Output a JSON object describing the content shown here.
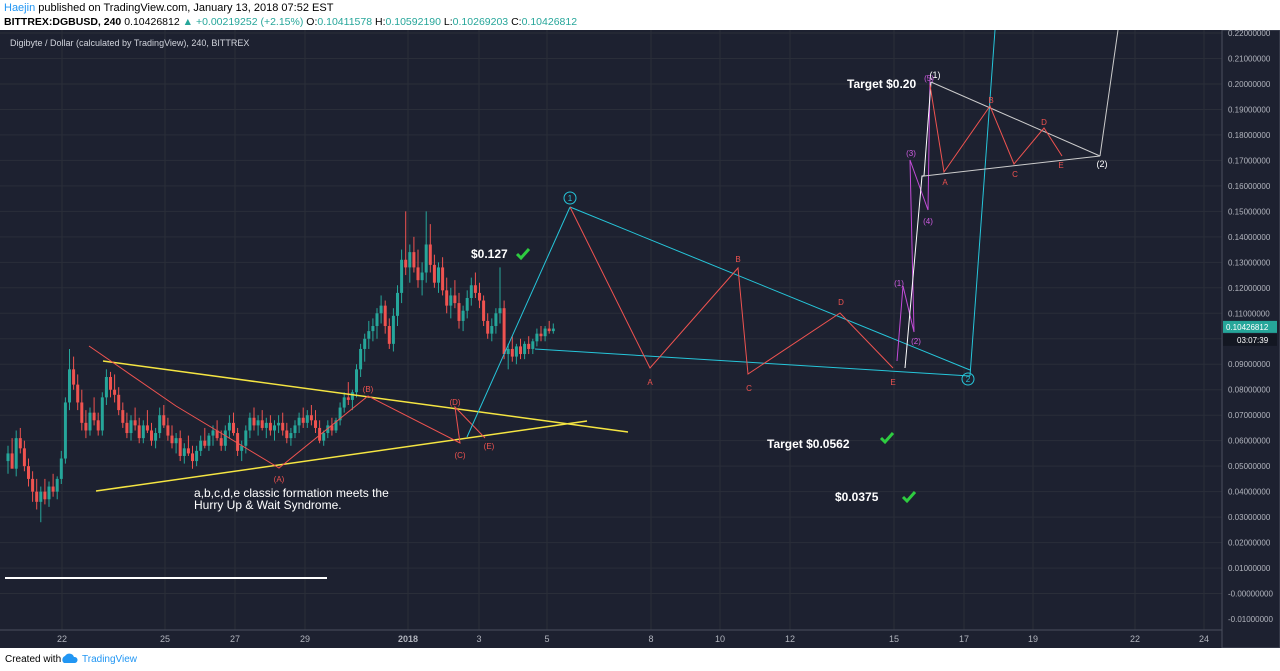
{
  "header": {
    "author": "Haejin",
    "published": "published on TradingView.com, January 13, 2018 07:52 EST",
    "symbol": "BITTREX:DGBUSD, 240",
    "last": "0.10426812",
    "change": "+0.00219252 (+2.15%)",
    "o_label": "O:",
    "o": "0.10411578",
    "h_label": "H:",
    "h": "0.10592190",
    "l_label": "L:",
    "l": "0.10269203",
    "c_label": "C:",
    "c": "0.10426812"
  },
  "footer": {
    "created": "Created with",
    "brand": "TradingView"
  },
  "chart_data": {
    "type": "candlestick",
    "title": "Digibyte / Dollar (calculated by TradingView), 240, BITTREX",
    "ylim": [
      -0.01,
      0.22
    ],
    "y_ticks": [
      "0.22000000",
      "0.21000000",
      "0.20000000",
      "0.19000000",
      "0.18000000",
      "0.17000000",
      "0.16000000",
      "0.15000000",
      "0.14000000",
      "0.13000000",
      "0.12000000",
      "0.11000000",
      "0.10000000",
      "0.09000000",
      "0.08000000",
      "0.07000000",
      "0.06000000",
      "0.05000000",
      "0.04000000",
      "0.03000000",
      "0.02000000",
      "0.01000000",
      "0.00000000",
      "-0.00000000",
      "-0.01000000"
    ],
    "x_ticks": [
      "22",
      "25",
      "27",
      "29",
      "2018",
      "3",
      "5",
      "8",
      "10",
      "12",
      "15",
      "17",
      "19",
      "22",
      "24"
    ],
    "last_price_label": "0.10426812",
    "countdown_label": "03:07:39",
    "colors": {
      "up": "#26a69a",
      "down": "#ef5350",
      "bg": "#1d2130",
      "grid": "#2a2e39",
      "axis_text": "#b2b5be"
    },
    "candles_ohlc": [
      [
        0.052,
        0.058,
        0.047,
        0.055
      ],
      [
        0.055,
        0.061,
        0.05,
        0.049
      ],
      [
        0.049,
        0.064,
        0.046,
        0.061
      ],
      [
        0.061,
        0.065,
        0.055,
        0.057
      ],
      [
        0.057,
        0.06,
        0.048,
        0.05
      ],
      [
        0.05,
        0.053,
        0.042,
        0.045
      ],
      [
        0.045,
        0.048,
        0.036,
        0.04
      ],
      [
        0.04,
        0.045,
        0.033,
        0.036
      ],
      [
        0.036,
        0.042,
        0.028,
        0.04
      ],
      [
        0.04,
        0.045,
        0.035,
        0.037
      ],
      [
        0.037,
        0.044,
        0.034,
        0.042
      ],
      [
        0.042,
        0.047,
        0.038,
        0.04
      ],
      [
        0.04,
        0.046,
        0.037,
        0.045
      ],
      [
        0.045,
        0.056,
        0.043,
        0.053
      ],
      [
        0.053,
        0.077,
        0.051,
        0.075
      ],
      [
        0.075,
        0.096,
        0.072,
        0.088
      ],
      [
        0.088,
        0.093,
        0.08,
        0.082
      ],
      [
        0.082,
        0.086,
        0.072,
        0.075
      ],
      [
        0.075,
        0.08,
        0.064,
        0.067
      ],
      [
        0.067,
        0.072,
        0.061,
        0.064
      ],
      [
        0.064,
        0.073,
        0.062,
        0.071
      ],
      [
        0.071,
        0.077,
        0.066,
        0.068
      ],
      [
        0.068,
        0.071,
        0.062,
        0.064
      ],
      [
        0.064,
        0.079,
        0.062,
        0.077
      ],
      [
        0.077,
        0.088,
        0.074,
        0.085
      ],
      [
        0.085,
        0.087,
        0.077,
        0.08
      ],
      [
        0.08,
        0.086,
        0.075,
        0.078
      ],
      [
        0.078,
        0.081,
        0.07,
        0.072
      ],
      [
        0.072,
        0.075,
        0.065,
        0.067
      ],
      [
        0.067,
        0.071,
        0.061,
        0.063
      ],
      [
        0.063,
        0.07,
        0.06,
        0.068
      ],
      [
        0.068,
        0.073,
        0.064,
        0.066
      ],
      [
        0.066,
        0.069,
        0.059,
        0.061
      ],
      [
        0.061,
        0.068,
        0.059,
        0.066
      ],
      [
        0.066,
        0.072,
        0.063,
        0.064
      ],
      [
        0.064,
        0.067,
        0.058,
        0.06
      ],
      [
        0.06,
        0.065,
        0.057,
        0.063
      ],
      [
        0.063,
        0.073,
        0.061,
        0.07
      ],
      [
        0.07,
        0.074,
        0.065,
        0.066
      ],
      [
        0.066,
        0.069,
        0.06,
        0.062
      ],
      [
        0.062,
        0.066,
        0.057,
        0.059
      ],
      [
        0.059,
        0.063,
        0.055,
        0.061
      ],
      [
        0.061,
        0.064,
        0.052,
        0.054
      ],
      [
        0.054,
        0.059,
        0.051,
        0.057
      ],
      [
        0.057,
        0.062,
        0.054,
        0.055
      ],
      [
        0.055,
        0.058,
        0.049,
        0.052
      ],
      [
        0.052,
        0.058,
        0.05,
        0.056
      ],
      [
        0.056,
        0.062,
        0.054,
        0.06
      ],
      [
        0.06,
        0.065,
        0.057,
        0.058
      ],
      [
        0.058,
        0.063,
        0.056,
        0.062
      ],
      [
        0.062,
        0.066,
        0.058,
        0.064
      ],
      [
        0.064,
        0.068,
        0.06,
        0.061
      ],
      [
        0.061,
        0.064,
        0.056,
        0.058
      ],
      [
        0.058,
        0.066,
        0.056,
        0.064
      ],
      [
        0.064,
        0.07,
        0.061,
        0.067
      ],
      [
        0.067,
        0.071,
        0.062,
        0.063
      ],
      [
        0.063,
        0.065,
        0.054,
        0.056
      ],
      [
        0.056,
        0.06,
        0.052,
        0.058
      ],
      [
        0.058,
        0.066,
        0.055,
        0.064
      ],
      [
        0.064,
        0.071,
        0.061,
        0.069
      ],
      [
        0.069,
        0.073,
        0.064,
        0.066
      ],
      [
        0.066,
        0.07,
        0.062,
        0.068
      ],
      [
        0.068,
        0.072,
        0.064,
        0.065
      ],
      [
        0.065,
        0.069,
        0.061,
        0.067
      ],
      [
        0.067,
        0.07,
        0.062,
        0.064
      ],
      [
        0.064,
        0.068,
        0.06,
        0.066
      ],
      [
        0.066,
        0.07,
        0.063,
        0.067
      ],
      [
        0.067,
        0.071,
        0.062,
        0.064
      ],
      [
        0.064,
        0.067,
        0.059,
        0.061
      ],
      [
        0.061,
        0.065,
        0.058,
        0.063
      ],
      [
        0.063,
        0.068,
        0.061,
        0.066
      ],
      [
        0.066,
        0.071,
        0.063,
        0.069
      ],
      [
        0.069,
        0.073,
        0.065,
        0.067
      ],
      [
        0.067,
        0.072,
        0.065,
        0.07
      ],
      [
        0.07,
        0.074,
        0.066,
        0.068
      ],
      [
        0.068,
        0.072,
        0.063,
        0.065
      ],
      [
        0.065,
        0.068,
        0.059,
        0.06
      ],
      [
        0.06,
        0.064,
        0.058,
        0.063
      ],
      [
        0.063,
        0.068,
        0.061,
        0.066
      ],
      [
        0.066,
        0.069,
        0.062,
        0.064
      ],
      [
        0.064,
        0.069,
        0.063,
        0.068
      ],
      [
        0.068,
        0.075,
        0.066,
        0.073
      ],
      [
        0.073,
        0.079,
        0.071,
        0.077
      ],
      [
        0.077,
        0.083,
        0.074,
        0.076
      ],
      [
        0.076,
        0.08,
        0.072,
        0.079
      ],
      [
        0.079,
        0.09,
        0.077,
        0.088
      ],
      [
        0.088,
        0.098,
        0.085,
        0.096
      ],
      [
        0.096,
        0.102,
        0.091,
        0.1
      ],
      [
        0.1,
        0.107,
        0.096,
        0.103
      ],
      [
        0.103,
        0.108,
        0.099,
        0.105
      ],
      [
        0.105,
        0.112,
        0.1,
        0.11
      ],
      [
        0.11,
        0.117,
        0.106,
        0.113
      ],
      [
        0.113,
        0.115,
        0.102,
        0.105
      ],
      [
        0.105,
        0.108,
        0.096,
        0.098
      ],
      [
        0.098,
        0.112,
        0.095,
        0.109
      ],
      [
        0.109,
        0.121,
        0.105,
        0.118
      ],
      [
        0.118,
        0.135,
        0.114,
        0.131
      ],
      [
        0.131,
        0.15,
        0.125,
        0.128
      ],
      [
        0.128,
        0.137,
        0.122,
        0.134
      ],
      [
        0.134,
        0.14,
        0.126,
        0.128
      ],
      [
        0.128,
        0.135,
        0.12,
        0.123
      ],
      [
        0.123,
        0.13,
        0.117,
        0.126
      ],
      [
        0.126,
        0.15,
        0.122,
        0.137
      ],
      [
        0.137,
        0.145,
        0.126,
        0.129
      ],
      [
        0.129,
        0.133,
        0.12,
        0.122
      ],
      [
        0.122,
        0.13,
        0.118,
        0.128
      ],
      [
        0.128,
        0.132,
        0.117,
        0.119
      ],
      [
        0.119,
        0.124,
        0.11,
        0.113
      ],
      [
        0.113,
        0.12,
        0.108,
        0.117
      ],
      [
        0.117,
        0.123,
        0.112,
        0.114
      ],
      [
        0.114,
        0.118,
        0.104,
        0.107
      ],
      [
        0.107,
        0.113,
        0.103,
        0.111
      ],
      [
        0.111,
        0.119,
        0.108,
        0.116
      ],
      [
        0.116,
        0.124,
        0.113,
        0.121
      ],
      [
        0.121,
        0.126,
        0.116,
        0.118
      ],
      [
        0.118,
        0.122,
        0.112,
        0.115
      ],
      [
        0.115,
        0.117,
        0.105,
        0.107
      ],
      [
        0.107,
        0.11,
        0.1,
        0.102
      ],
      [
        0.102,
        0.108,
        0.099,
        0.105
      ],
      [
        0.105,
        0.112,
        0.102,
        0.11
      ],
      [
        0.11,
        0.128,
        0.106,
        0.112
      ],
      [
        0.112,
        0.115,
        0.092,
        0.094
      ],
      [
        0.094,
        0.098,
        0.088,
        0.096
      ],
      [
        0.096,
        0.101,
        0.091,
        0.093
      ],
      [
        0.093,
        0.098,
        0.09,
        0.097
      ],
      [
        0.097,
        0.1,
        0.092,
        0.094
      ],
      [
        0.094,
        0.099,
        0.092,
        0.098
      ],
      [
        0.098,
        0.101,
        0.094,
        0.096
      ],
      [
        0.096,
        0.1,
        0.094,
        0.099
      ],
      [
        0.099,
        0.104,
        0.097,
        0.102
      ],
      [
        0.102,
        0.105,
        0.099,
        0.101
      ],
      [
        0.101,
        0.105,
        0.099,
        0.104
      ],
      [
        0.104,
        0.107,
        0.102,
        0.103
      ],
      [
        0.103,
        0.106,
        0.102,
        0.104
      ]
    ],
    "annotations": {
      "prices": [
        {
          "label": "$0.127",
          "check": true
        },
        {
          "label": "Target $0.0562",
          "check": true
        },
        {
          "label": "$0.0375",
          "check": true
        },
        {
          "label": "Target $0.20",
          "check": false
        }
      ],
      "note_line1": "a,b,c,d,e classic formation meets the",
      "note_line2": "Hurry Up & Wait Syndrome.",
      "wave_labels_triangle1": [
        "(A)",
        "(B)",
        "(C)",
        "(D)",
        "(E)"
      ],
      "wave_labels_triangle2": [
        "A",
        "B",
        "C",
        "D",
        "E"
      ],
      "wave_labels_triangle3": [
        "A",
        "B",
        "C",
        "D",
        "E"
      ],
      "circle_labels": [
        "1",
        "2"
      ],
      "impulse_labels": [
        "(1)",
        "(2)",
        "(3)",
        "(4)",
        "(5)"
      ],
      "top_label": "(1)",
      "end_label": "(2)"
    }
  }
}
